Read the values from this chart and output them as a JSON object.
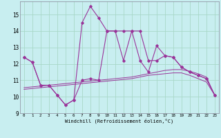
{
  "xlabel": "Windchill (Refroidissement éolien,°C)",
  "background_color": "#c8eef0",
  "grid_color": "#a8d8c8",
  "line_color": "#993399",
  "x": [
    0,
    1,
    2,
    3,
    4,
    5,
    6,
    7,
    8,
    9,
    10,
    11,
    12,
    13,
    14,
    15,
    16,
    17,
    18,
    19,
    20,
    21,
    22,
    23
  ],
  "series1": [
    12.4,
    12.1,
    10.7,
    10.7,
    10.1,
    9.5,
    9.8,
    11.0,
    11.1,
    11.0,
    14.0,
    14.0,
    12.2,
    14.0,
    12.2,
    11.5,
    13.1,
    12.5,
    12.4,
    11.8,
    11.5,
    11.3,
    11.1,
    10.1
  ],
  "series2": [
    12.4,
    12.1,
    10.7,
    10.7,
    10.1,
    9.5,
    9.8,
    14.5,
    15.5,
    14.8,
    14.0,
    14.0,
    14.0,
    14.0,
    14.0,
    12.2,
    12.2,
    12.5,
    12.4,
    11.8,
    11.5,
    11.3,
    11.1,
    10.1
  ],
  "series3": [
    10.55,
    10.6,
    10.65,
    10.7,
    10.75,
    10.8,
    10.85,
    10.9,
    10.95,
    11.0,
    11.05,
    11.1,
    11.15,
    11.2,
    11.3,
    11.4,
    11.5,
    11.6,
    11.65,
    11.65,
    11.55,
    11.4,
    11.2,
    10.1
  ],
  "series4": [
    10.45,
    10.5,
    10.55,
    10.6,
    10.65,
    10.7,
    10.75,
    10.8,
    10.85,
    10.9,
    10.95,
    11.0,
    11.05,
    11.1,
    11.2,
    11.3,
    11.35,
    11.4,
    11.45,
    11.45,
    11.3,
    11.1,
    10.9,
    10.1
  ],
  "ylim": [
    9.0,
    15.8
  ],
  "yticks": [
    9,
    10,
    11,
    12,
    13,
    14,
    15
  ],
  "xticks": [
    0,
    1,
    2,
    3,
    4,
    5,
    6,
    7,
    8,
    9,
    10,
    11,
    12,
    13,
    14,
    15,
    16,
    17,
    18,
    19,
    20,
    21,
    22,
    23
  ]
}
